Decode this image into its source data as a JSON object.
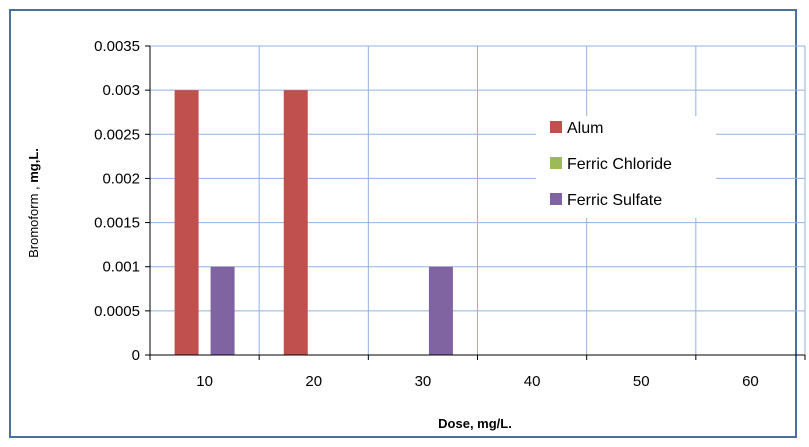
{
  "chart_data": {
    "type": "bar",
    "categories": [
      "10",
      "20",
      "30",
      "40",
      "50",
      "60"
    ],
    "series": [
      {
        "name": "Alum",
        "color": "#c0504d",
        "values": [
          0.003,
          0.003,
          0,
          0,
          0,
          0
        ]
      },
      {
        "name": "Ferric Chloride",
        "color": "#9bbb59",
        "values": [
          0,
          0,
          0,
          0,
          0,
          0
        ]
      },
      {
        "name": "Ferric Sulfate",
        "color": "#8064a2",
        "values": [
          0.001,
          0,
          0.001,
          0,
          0,
          0
        ]
      }
    ],
    "yticks": [
      "0",
      "0.0005",
      "0.001",
      "0.0015",
      "0.002",
      "0.0025",
      "0.003",
      "0.0035"
    ],
    "ylim": [
      0,
      0.0035
    ],
    "ylabel": {
      "main": "Bromoform , ",
      "unit": "mg,L."
    },
    "xlabel": "Dose, mg/L.",
    "grid": true,
    "legend_position": "right-inside",
    "colors": {
      "frame": "#4a6fa5",
      "grid": "#8db3e2",
      "axis": "#000000"
    }
  }
}
